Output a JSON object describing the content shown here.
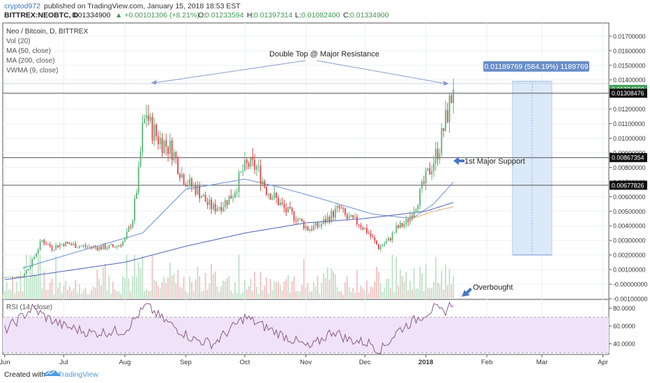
{
  "header": {
    "author": "cryptod972",
    "published": "published on TradingView.com, January 15, 2018 18:53 EST",
    "symbol": "BITTREX:NEOBTC, D",
    "last": "0.01334900",
    "change": "▲ +0.00101306 (+8.21%)",
    "o_label": "O:",
    "o_value": "0.01233594",
    "h_label": "H:",
    "h_value": "0.01397314",
    "l_label": "L:",
    "l_value": "0.01082400",
    "c_label": "C:",
    "c_value": "0.01334900"
  },
  "legend": {
    "title": "Neo / Bitcoin, D, BITTREX",
    "vol": "Vol (20)",
    "ma50": "MA (50, close)",
    "ma200": "MA (200, close)",
    "vwma": "VWMA (9, close)"
  },
  "rsi": {
    "label": "RSI (14, close)",
    "ticks": [
      "80.0000",
      "60.0000",
      "40.0000"
    ]
  },
  "footer": {
    "created_with": "Created with",
    "brand": "TradingView"
  },
  "colors": {
    "up": "#5db57a",
    "down": "#e0484e",
    "ma": "#6b8fd4",
    "ma_dark": "#4a62b8",
    "rsi_line": "#8a5a8a",
    "rsi_band": "#f0e3f7",
    "badge_green": "#45a05c",
    "badge_dark": "#111111",
    "measure": "#dce9f9",
    "measure_label": "#6a8ec8",
    "annot": "#8a9ad0"
  },
  "chart_data": {
    "type": "candlestick",
    "title": "Neo / Bitcoin, D, BITTREX",
    "ylabel": "",
    "y_ticks": [
      "0.01700000",
      "0.01600000",
      "0.01500000",
      "0.01400000",
      "0.01300000",
      "0.01200000",
      "0.01100000",
      "0.01000000",
      "0.00900000",
      "0.00800000",
      "0.00700000",
      "0.00600000",
      "0.00500000",
      "0.00400000",
      "0.00300000",
      "0.00200000",
      "0.00100000",
      "-0.00000000",
      "-0.00100000"
    ],
    "y_range": [
      -0.001,
      0.0179
    ],
    "x_labels": [
      "Jun",
      "Jul",
      "Aug",
      "Sep",
      "Oct",
      "Nov",
      "Dec",
      "2018",
      "Feb",
      "Mar",
      "Apr"
    ],
    "x_range": [
      "2017-05-31",
      "2018-04-04"
    ],
    "price_badges": [
      {
        "value": 0.013349,
        "label": "0.01334900",
        "style": "green"
      },
      {
        "value": 0.01308476,
        "label": "0.01308476",
        "style": "dark"
      },
      {
        "value": 0.00867354,
        "label": "0.00867354",
        "style": "dark"
      },
      {
        "value": 0.00677826,
        "label": "0.00677826",
        "style": "dark"
      }
    ],
    "horizontal_levels": [
      0.01308476,
      0.00867354,
      0.00677826
    ],
    "annotations": [
      {
        "text": "Double Top @ Major Resistance"
      },
      {
        "text": "1st Major Support"
      },
      {
        "text": "Overbought"
      }
    ],
    "measure": {
      "label": "0.01189769 (584.19%) 1189769",
      "from": 0.002,
      "to": 0.013898
    },
    "close_anchors": [
      [
        "2017-05-31",
        0.00045
      ],
      [
        "2017-06-10",
        0.00055
      ],
      [
        "2017-06-14",
        0.0013
      ],
      [
        "2017-06-17",
        0.0022
      ],
      [
        "2017-06-20",
        0.003
      ],
      [
        "2017-06-25",
        0.0025
      ],
      [
        "2017-07-01",
        0.0028
      ],
      [
        "2017-07-10",
        0.0026
      ],
      [
        "2017-07-20",
        0.0025
      ],
      [
        "2017-07-28",
        0.0026
      ],
      [
        "2017-08-01",
        0.003
      ],
      [
        "2017-08-05",
        0.0045
      ],
      [
        "2017-08-08",
        0.0075
      ],
      [
        "2017-08-10",
        0.0105
      ],
      [
        "2017-08-12",
        0.0118
      ],
      [
        "2017-08-14",
        0.0108
      ],
      [
        "2017-08-18",
        0.01
      ],
      [
        "2017-08-25",
        0.0092
      ],
      [
        "2017-08-30",
        0.0075
      ],
      [
        "2017-09-03",
        0.0068
      ],
      [
        "2017-09-07",
        0.0065
      ],
      [
        "2017-09-12",
        0.0055
      ],
      [
        "2017-09-15",
        0.0052
      ],
      [
        "2017-09-20",
        0.0055
      ],
      [
        "2017-09-25",
        0.0062
      ],
      [
        "2017-09-30",
        0.0078
      ],
      [
        "2017-10-03",
        0.0082
      ],
      [
        "2017-10-07",
        0.008
      ],
      [
        "2017-10-12",
        0.0065
      ],
      [
        "2017-10-17",
        0.0058
      ],
      [
        "2017-10-22",
        0.005
      ],
      [
        "2017-10-27",
        0.0046
      ],
      [
        "2017-11-02",
        0.0038
      ],
      [
        "2017-11-08",
        0.004
      ],
      [
        "2017-11-12",
        0.0045
      ],
      [
        "2017-11-18",
        0.0052
      ],
      [
        "2017-11-22",
        0.0045
      ],
      [
        "2017-11-28",
        0.0042
      ],
      [
        "2017-12-03",
        0.0035
      ],
      [
        "2017-12-08",
        0.0025
      ],
      [
        "2017-12-13",
        0.003
      ],
      [
        "2017-12-17",
        0.0038
      ],
      [
        "2017-12-22",
        0.0042
      ],
      [
        "2017-12-27",
        0.0055
      ],
      [
        "2018-01-01",
        0.0072
      ],
      [
        "2018-01-05",
        0.0085
      ],
      [
        "2018-01-08",
        0.0095
      ],
      [
        "2018-01-11",
        0.0112
      ],
      [
        "2018-01-13",
        0.0123
      ],
      [
        "2018-01-15",
        0.013349
      ]
    ],
    "ma_anchors": [
      {
        "name": "MA (50, close)",
        "points": [
          [
            "2017-06-10",
            0.0011
          ],
          [
            "2017-07-10",
            0.0023
          ],
          [
            "2017-08-10",
            0.0035
          ],
          [
            "2017-09-01",
            0.0065
          ],
          [
            "2017-10-01",
            0.0072
          ],
          [
            "2017-10-20",
            0.0066
          ],
          [
            "2017-11-10",
            0.0058
          ],
          [
            "2017-12-05",
            0.0048
          ],
          [
            "2017-12-25",
            0.0045
          ],
          [
            "2018-01-05",
            0.0055
          ],
          [
            "2018-01-15",
            0.007
          ]
        ]
      },
      {
        "name": "MA (200, close)",
        "points": [
          [
            "2017-06-01",
            0.0003
          ],
          [
            "2017-08-01",
            0.0015
          ],
          [
            "2017-09-01",
            0.0026
          ],
          [
            "2017-10-01",
            0.0035
          ],
          [
            "2017-11-01",
            0.0042
          ],
          [
            "2017-12-01",
            0.0045
          ],
          [
            "2018-01-01",
            0.005
          ],
          [
            "2018-01-15",
            0.0056
          ]
        ]
      },
      {
        "name": "VWMA (9, close)",
        "points": [
          [
            "2017-12-25",
            0.0045
          ],
          [
            "2018-01-05",
            0.005
          ],
          [
            "2018-01-15",
            0.0053
          ]
        ]
      }
    ],
    "rsi_anchors": [
      [
        "2017-06-01",
        55
      ],
      [
        "2017-06-15",
        80
      ],
      [
        "2017-06-22",
        70
      ],
      [
        "2017-07-01",
        60
      ],
      [
        "2017-07-15",
        52
      ],
      [
        "2017-08-01",
        55
      ],
      [
        "2017-08-12",
        83
      ],
      [
        "2017-08-20",
        68
      ],
      [
        "2017-09-05",
        45
      ],
      [
        "2017-09-15",
        40
      ],
      [
        "2017-10-01",
        70
      ],
      [
        "2017-10-15",
        55
      ],
      [
        "2017-10-25",
        45
      ],
      [
        "2017-11-03",
        35
      ],
      [
        "2017-11-15",
        55
      ],
      [
        "2017-11-22",
        45
      ],
      [
        "2017-12-05",
        40
      ],
      [
        "2017-12-08",
        30
      ],
      [
        "2017-12-18",
        55
      ],
      [
        "2018-01-05",
        80
      ],
      [
        "2018-01-10",
        75
      ],
      [
        "2018-01-15",
        88
      ]
    ],
    "rsi_range": [
      28,
      90
    ],
    "rsi_band": [
      30,
      70
    ]
  }
}
